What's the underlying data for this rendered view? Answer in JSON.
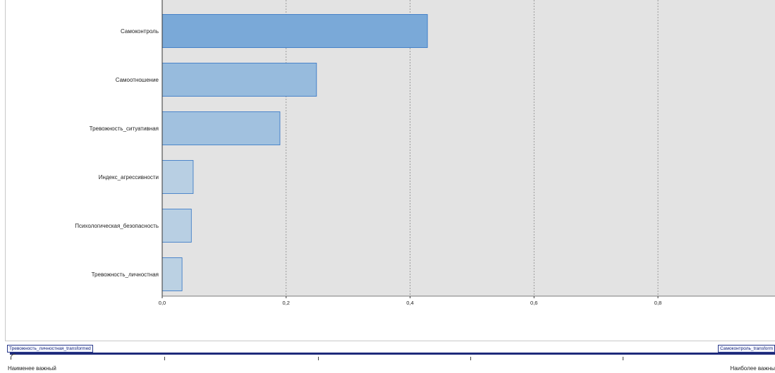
{
  "chart_data": {
    "type": "bar",
    "orientation": "horizontal",
    "categories": [
      "Самоконтроль",
      "Самоотношение",
      "Тревожность_ситуативная",
      "Индекс_агрессивности",
      "Психологическая_безопасность",
      "Тревожность_личностная"
    ],
    "values": [
      0.428,
      0.249,
      0.19,
      0.05,
      0.047,
      0.032
    ],
    "xticks": [
      "0,0",
      "0,2",
      "0,4",
      "0,6",
      "0,8"
    ],
    "xtick_values": [
      0,
      0.2,
      0.4,
      0.6,
      0.8
    ],
    "xlim": [
      0,
      0.99
    ],
    "grid": "vertical dashed",
    "colors": {
      "plot_bg": "#e3e3e3",
      "bar_stroke": "#2e72c4",
      "bar_high": "#7aa9d8",
      "bar_low": "#c0d4e4"
    }
  },
  "importance_scale": {
    "min_field": "Тревожность_личностная_transformed",
    "max_field": "Самоконтроль_transform",
    "least_label": "Наименее важный",
    "most_label": "Наиболее важны"
  }
}
